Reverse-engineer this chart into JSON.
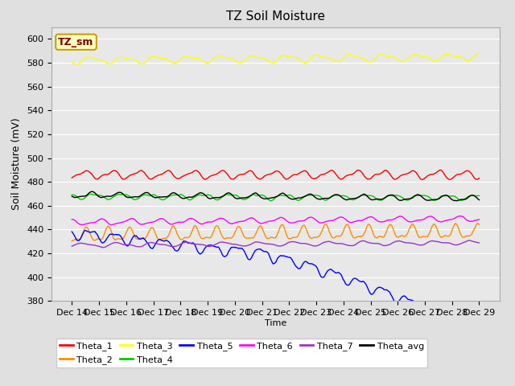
{
  "title": "TZ Soil Moisture",
  "ylabel": "Soil Moisture (mV)",
  "xlabel": "Time",
  "xlabels": [
    "Dec 14",
    "Dec 15",
    "Dec 16",
    "Dec 17",
    "Dec 18",
    "Dec 19",
    "Dec 20",
    "Dec 21",
    "Dec 22",
    "Dec 23",
    "Dec 24",
    "Dec 25",
    "Dec 26",
    "Dec 27",
    "Dec 28",
    "Dec 29"
  ],
  "ylim": [
    380,
    610
  ],
  "yticks": [
    380,
    400,
    420,
    440,
    460,
    480,
    500,
    520,
    540,
    560,
    580,
    600
  ],
  "bg_color": "#e8e8e8",
  "grid_color": "#ffffff",
  "fig_bg_color": "#e0e0e0",
  "annotation_text": "TZ_sm",
  "annotation_bg": "#ffffc0",
  "annotation_border": "#c8a000",
  "annotation_text_color": "#800000",
  "series_order": [
    "Theta_1",
    "Theta_2",
    "Theta_3",
    "Theta_4",
    "Theta_5",
    "Theta_6",
    "Theta_7",
    "Theta_avg"
  ],
  "series": {
    "Theta_1": {
      "color": "#ff0000",
      "base": 486,
      "amplitude": 3.0,
      "osc_period": 1.0,
      "trend": 0.0,
      "noise": 0.5
    },
    "Theta_2": {
      "color": "#ff8c00",
      "base": 435,
      "amplitude": 5.0,
      "osc_period": 0.8,
      "trend": 3.0,
      "noise": 0.8
    },
    "Theta_3": {
      "color": "#ffff00",
      "base": 582,
      "amplitude": 2.5,
      "osc_period": 1.2,
      "trend": 3.0,
      "noise": 0.5
    },
    "Theta_4": {
      "color": "#00cc00",
      "base": 468,
      "amplitude": 2.0,
      "osc_period": 1.0,
      "trend": -1.0,
      "noise": 0.5
    },
    "Theta_5": {
      "color": "#0000ff",
      "base": 437,
      "amplitude": 4.0,
      "osc_period": 0.9,
      "trend": -37.0,
      "noise": 1.0
    },
    "Theta_6": {
      "color": "#ff00ff",
      "base": 446,
      "amplitude": 2.0,
      "osc_period": 1.1,
      "trend": 3.0,
      "noise": 0.3
    },
    "Theta_7": {
      "color": "#9933cc",
      "base": 427,
      "amplitude": 1.5,
      "osc_period": 1.3,
      "trend": 2.0,
      "noise": 0.3
    },
    "Theta_avg": {
      "color": "#000000",
      "base": 469,
      "amplitude": 2.0,
      "osc_period": 1.0,
      "trend": -3.0,
      "noise": 0.4
    }
  },
  "n_points": 480,
  "lw": 1.0,
  "legend_fontsize": 8,
  "title_fontsize": 11,
  "tick_fontsize": 8
}
